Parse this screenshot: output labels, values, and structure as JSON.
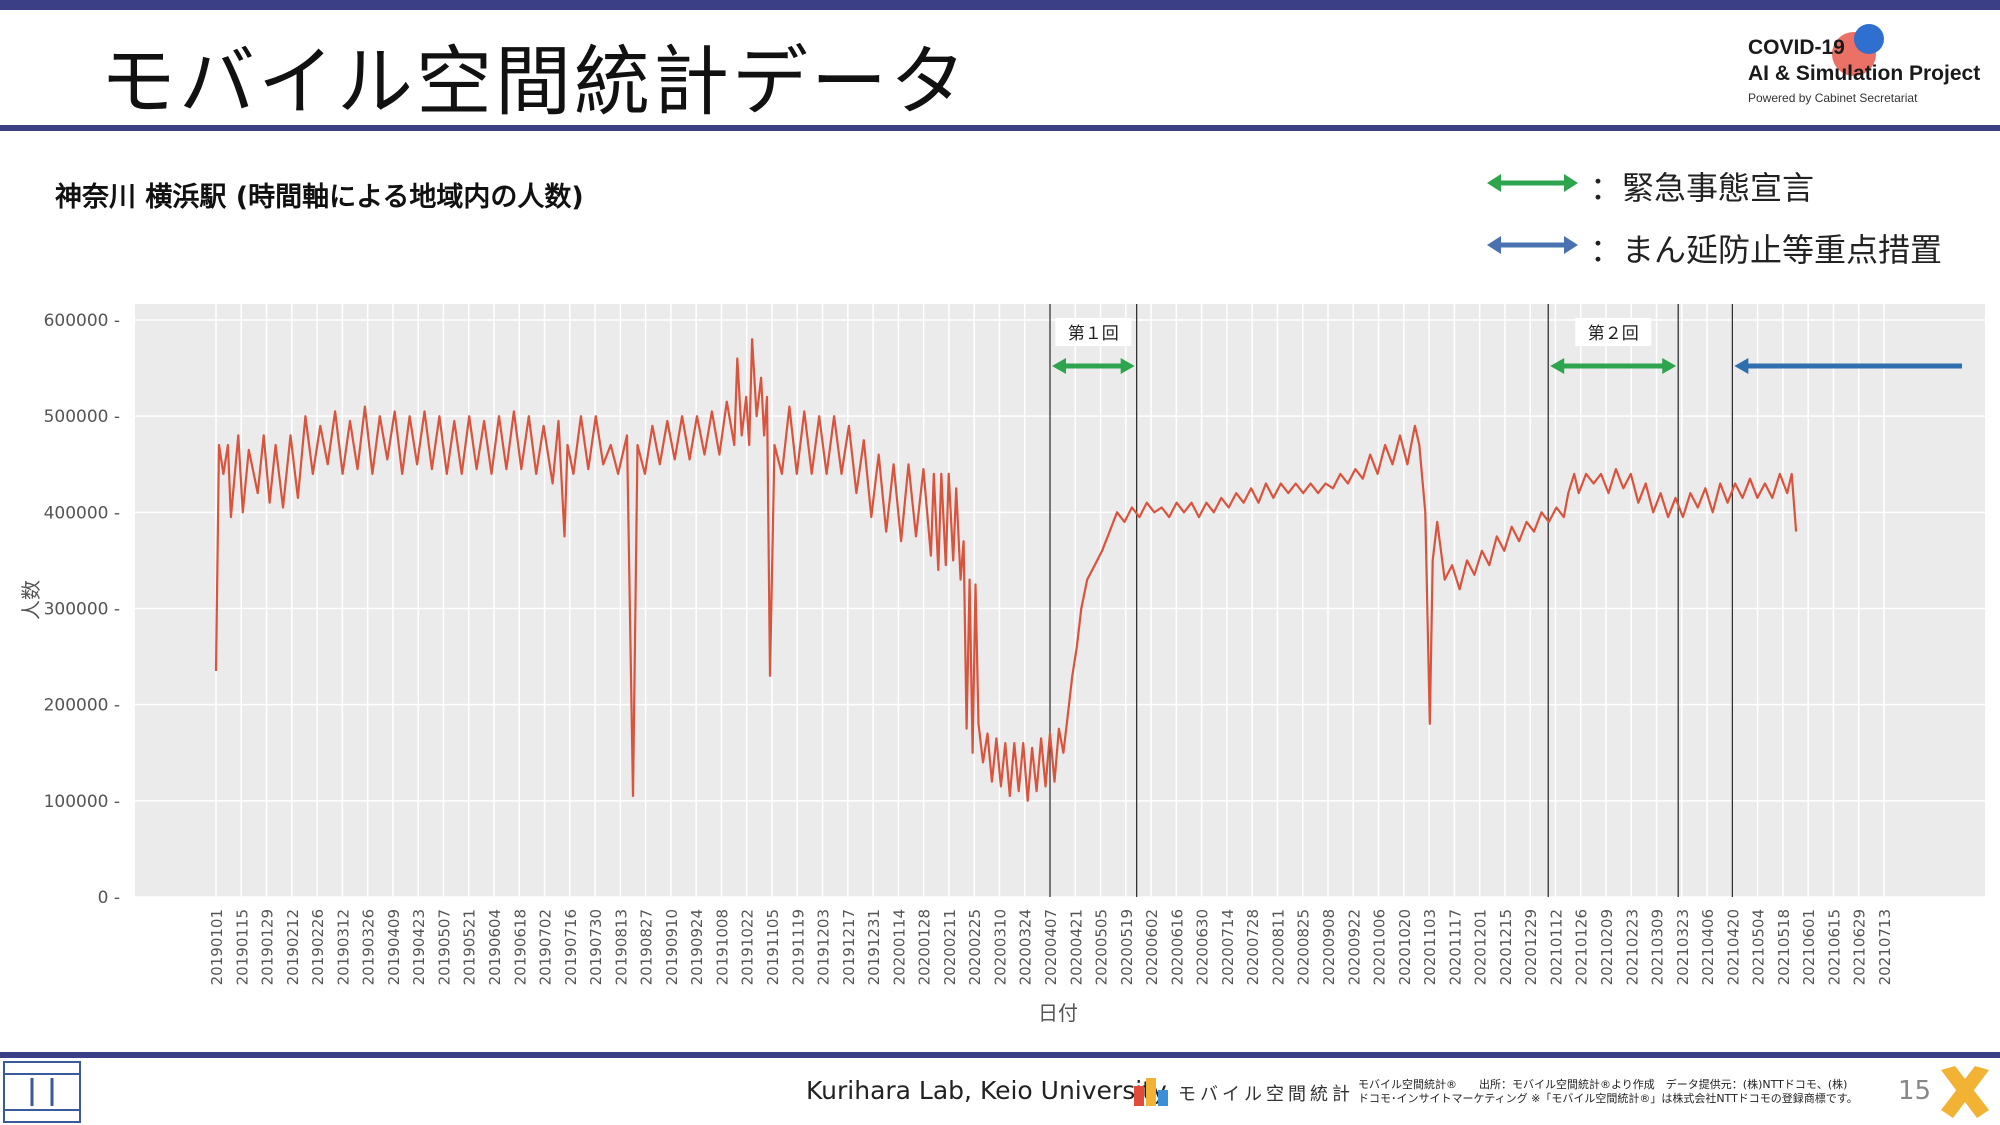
{
  "header": {
    "slide_title": "モバイル空間統計データ",
    "logo_line1": "COVID-19",
    "logo_line2": "AI & Simulation Project",
    "logo_line3": "Powered by Cabinet Secretariat"
  },
  "legend": {
    "emergency_label": "：緊急事態宣言",
    "emergency_color": "#2ea44f",
    "priority_label": "：まん延防止等重点措置",
    "priority_color": "#2f6fb0"
  },
  "chart_data": {
    "type": "line",
    "title": "神奈川 横浜駅 (時間軸による地域内の人数)",
    "xlabel": "日付",
    "ylabel": "人数",
    "ylim": [
      0,
      600000
    ],
    "y_ticks": [
      "0",
      "100000",
      "200000",
      "300000",
      "400000",
      "500000",
      "600000"
    ],
    "x_ticks": [
      "20190101",
      "20190115",
      "20190129",
      "20190212",
      "20190226",
      "20190312",
      "20190326",
      "20190409",
      "20190423",
      "20190507",
      "20190521",
      "20190604",
      "20190618",
      "20190702",
      "20190716",
      "20190730",
      "20190813",
      "20190827",
      "20190910",
      "20190924",
      "20191008",
      "20191022",
      "20191105",
      "20191119",
      "20191203",
      "20191217",
      "20191231",
      "20200114",
      "20200128",
      "20200211",
      "20200225",
      "20200310",
      "20200324",
      "20200407",
      "20200421",
      "20200505",
      "20200519",
      "20200602",
      "20200616",
      "20200630",
      "20200714",
      "20200728",
      "20200811",
      "20200825",
      "20200908",
      "20200922",
      "20201006",
      "20201020",
      "20201103",
      "20201117",
      "20201201",
      "20201215",
      "20201229",
      "20210112",
      "20210126",
      "20210209",
      "20210223",
      "20210309",
      "20210323",
      "20210406",
      "20210420",
      "20210504",
      "20210518",
      "20210601",
      "20210615",
      "20210629",
      "20210713"
    ],
    "grid": true,
    "line_color": "#d9533d",
    "background": "#ebebeb",
    "series": [
      {
        "values": [
          [
            0,
            235000
          ],
          [
            2,
            470000
          ],
          [
            5,
            440000
          ],
          [
            8,
            470000
          ],
          [
            10,
            395000
          ],
          [
            15,
            480000
          ],
          [
            18,
            400000
          ],
          [
            22,
            465000
          ],
          [
            28,
            420000
          ],
          [
            32,
            480000
          ],
          [
            36,
            410000
          ],
          [
            40,
            470000
          ],
          [
            45,
            405000
          ],
          [
            50,
            480000
          ],
          [
            55,
            415000
          ],
          [
            60,
            500000
          ],
          [
            65,
            440000
          ],
          [
            70,
            490000
          ],
          [
            75,
            450000
          ],
          [
            80,
            505000
          ],
          [
            85,
            440000
          ],
          [
            90,
            495000
          ],
          [
            95,
            445000
          ],
          [
            100,
            510000
          ],
          [
            105,
            440000
          ],
          [
            110,
            500000
          ],
          [
            115,
            455000
          ],
          [
            120,
            505000
          ],
          [
            125,
            440000
          ],
          [
            130,
            500000
          ],
          [
            135,
            450000
          ],
          [
            140,
            505000
          ],
          [
            145,
            445000
          ],
          [
            150,
            500000
          ],
          [
            155,
            440000
          ],
          [
            160,
            495000
          ],
          [
            165,
            440000
          ],
          [
            170,
            500000
          ],
          [
            175,
            445000
          ],
          [
            180,
            495000
          ],
          [
            185,
            440000
          ],
          [
            190,
            500000
          ],
          [
            195,
            445000
          ],
          [
            200,
            505000
          ],
          [
            205,
            445000
          ],
          [
            210,
            500000
          ],
          [
            215,
            440000
          ],
          [
            220,
            490000
          ],
          [
            226,
            430000
          ],
          [
            230,
            495000
          ],
          [
            234,
            375000
          ],
          [
            236,
            470000
          ],
          [
            240,
            440000
          ],
          [
            245,
            500000
          ],
          [
            250,
            445000
          ],
          [
            255,
            500000
          ],
          [
            260,
            450000
          ],
          [
            265,
            470000
          ],
          [
            270,
            440000
          ],
          [
            276,
            480000
          ],
          [
            280,
            105000
          ],
          [
            283,
            470000
          ],
          [
            288,
            440000
          ],
          [
            293,
            490000
          ],
          [
            298,
            450000
          ],
          [
            303,
            495000
          ],
          [
            308,
            455000
          ],
          [
            313,
            500000
          ],
          [
            318,
            455000
          ],
          [
            323,
            500000
          ],
          [
            328,
            460000
          ],
          [
            333,
            505000
          ],
          [
            338,
            460000
          ],
          [
            343,
            515000
          ],
          [
            348,
            470000
          ],
          [
            350,
            560000
          ],
          [
            353,
            480000
          ],
          [
            356,
            520000
          ],
          [
            358,
            470000
          ],
          [
            360,
            580000
          ],
          [
            363,
            500000
          ],
          [
            366,
            540000
          ],
          [
            368,
            480000
          ],
          [
            370,
            520000
          ],
          [
            372,
            230000
          ],
          [
            375,
            470000
          ],
          [
            380,
            440000
          ],
          [
            385,
            510000
          ],
          [
            390,
            440000
          ],
          [
            395,
            505000
          ],
          [
            400,
            440000
          ],
          [
            405,
            500000
          ],
          [
            410,
            440000
          ],
          [
            415,
            500000
          ],
          [
            420,
            440000
          ],
          [
            425,
            490000
          ],
          [
            430,
            420000
          ],
          [
            435,
            475000
          ],
          [
            440,
            395000
          ],
          [
            445,
            460000
          ],
          [
            450,
            380000
          ],
          [
            455,
            450000
          ],
          [
            460,
            370000
          ],
          [
            465,
            450000
          ],
          [
            470,
            375000
          ],
          [
            475,
            445000
          ],
          [
            480,
            355000
          ],
          [
            482,
            440000
          ],
          [
            485,
            340000
          ],
          [
            487,
            440000
          ],
          [
            490,
            345000
          ],
          [
            492,
            440000
          ],
          [
            495,
            350000
          ],
          [
            497,
            425000
          ],
          [
            500,
            330000
          ],
          [
            502,
            370000
          ],
          [
            504,
            175000
          ],
          [
            506,
            330000
          ],
          [
            508,
            150000
          ],
          [
            510,
            325000
          ],
          [
            512,
            180000
          ],
          [
            515,
            140000
          ],
          [
            518,
            170000
          ],
          [
            521,
            120000
          ],
          [
            524,
            165000
          ],
          [
            527,
            115000
          ],
          [
            530,
            160000
          ],
          [
            533,
            105000
          ],
          [
            536,
            160000
          ],
          [
            539,
            110000
          ],
          [
            542,
            160000
          ],
          [
            545,
            100000
          ],
          [
            548,
            155000
          ],
          [
            551,
            110000
          ],
          [
            554,
            165000
          ],
          [
            557,
            115000
          ],
          [
            560,
            170000
          ],
          [
            563,
            120000
          ],
          [
            566,
            175000
          ],
          [
            569,
            150000
          ],
          [
            572,
            190000
          ],
          [
            575,
            230000
          ],
          [
            578,
            260000
          ],
          [
            581,
            300000
          ],
          [
            585,
            330000
          ],
          [
            590,
            345000
          ],
          [
            595,
            360000
          ],
          [
            600,
            380000
          ],
          [
            605,
            400000
          ],
          [
            610,
            390000
          ],
          [
            615,
            405000
          ],
          [
            620,
            395000
          ],
          [
            625,
            410000
          ],
          [
            630,
            400000
          ],
          [
            635,
            405000
          ],
          [
            640,
            395000
          ],
          [
            645,
            410000
          ],
          [
            650,
            400000
          ],
          [
            655,
            410000
          ],
          [
            660,
            395000
          ],
          [
            665,
            410000
          ],
          [
            670,
            400000
          ],
          [
            675,
            415000
          ],
          [
            680,
            405000
          ],
          [
            685,
            420000
          ],
          [
            690,
            410000
          ],
          [
            695,
            425000
          ],
          [
            700,
            410000
          ],
          [
            705,
            430000
          ],
          [
            710,
            415000
          ],
          [
            715,
            430000
          ],
          [
            720,
            420000
          ],
          [
            725,
            430000
          ],
          [
            730,
            420000
          ],
          [
            735,
            430000
          ],
          [
            740,
            420000
          ],
          [
            745,
            430000
          ],
          [
            750,
            425000
          ],
          [
            755,
            440000
          ],
          [
            760,
            430000
          ],
          [
            765,
            445000
          ],
          [
            770,
            435000
          ],
          [
            775,
            460000
          ],
          [
            780,
            440000
          ],
          [
            785,
            470000
          ],
          [
            790,
            450000
          ],
          [
            795,
            480000
          ],
          [
            800,
            450000
          ],
          [
            805,
            490000
          ],
          [
            808,
            470000
          ],
          [
            812,
            400000
          ],
          [
            815,
            180000
          ],
          [
            817,
            350000
          ],
          [
            820,
            390000
          ],
          [
            825,
            330000
          ],
          [
            830,
            345000
          ],
          [
            835,
            320000
          ],
          [
            840,
            350000
          ],
          [
            845,
            335000
          ],
          [
            850,
            360000
          ],
          [
            855,
            345000
          ],
          [
            860,
            375000
          ],
          [
            865,
            360000
          ],
          [
            870,
            385000
          ],
          [
            875,
            370000
          ],
          [
            880,
            390000
          ],
          [
            885,
            380000
          ],
          [
            890,
            400000
          ],
          [
            895,
            390000
          ],
          [
            900,
            405000
          ],
          [
            905,
            395000
          ],
          [
            908,
            420000
          ],
          [
            912,
            440000
          ],
          [
            915,
            420000
          ],
          [
            920,
            440000
          ],
          [
            925,
            430000
          ],
          [
            930,
            440000
          ],
          [
            935,
            420000
          ],
          [
            940,
            445000
          ],
          [
            945,
            425000
          ],
          [
            950,
            440000
          ],
          [
            955,
            410000
          ],
          [
            960,
            430000
          ],
          [
            965,
            400000
          ],
          [
            970,
            420000
          ],
          [
            975,
            395000
          ],
          [
            980,
            415000
          ],
          [
            985,
            395000
          ],
          [
            990,
            420000
          ],
          [
            995,
            405000
          ],
          [
            1000,
            425000
          ],
          [
            1005,
            400000
          ],
          [
            1010,
            430000
          ],
          [
            1015,
            410000
          ],
          [
            1020,
            430000
          ],
          [
            1025,
            415000
          ],
          [
            1030,
            435000
          ],
          [
            1035,
            415000
          ],
          [
            1040,
            430000
          ],
          [
            1045,
            415000
          ],
          [
            1050,
            440000
          ],
          [
            1055,
            420000
          ],
          [
            1058,
            440000
          ],
          [
            1061,
            380000
          ]
        ]
      }
    ],
    "x_index_range": [
      0,
      1120
    ],
    "spans": [
      {
        "label": "第１回",
        "start": "20200407",
        "end": "20200525",
        "kind": "emergency"
      },
      {
        "label": "第２回",
        "start": "20210108",
        "end": "20210321",
        "kind": "emergency"
      },
      {
        "label": "",
        "start": "20210420",
        "end": "",
        "kind": "priority"
      }
    ]
  },
  "footer": {
    "lab": "Kurihara Lab, Keio University",
    "logo_text": "モバイル空間統計",
    "credit_line1": "モバイル空間統計®　　出所：モバイル空間統計®より作成　データ提供元：(株)NTTドコモ、(株)",
    "credit_line2": "ドコモ･インサイトマーケティング ※「モバイル空間統計®」は株式会社NTTドコモの登録商標です。",
    "page_number": "15"
  }
}
